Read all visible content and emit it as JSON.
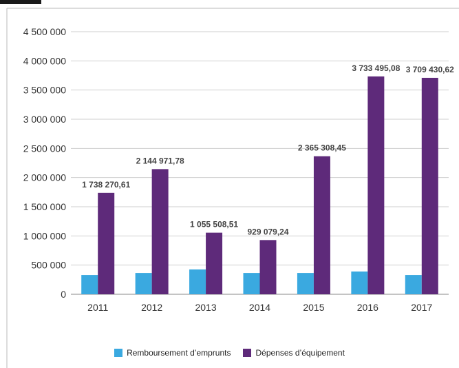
{
  "chart_data": {
    "type": "bar",
    "categories": [
      "2011",
      "2012",
      "2013",
      "2014",
      "2015",
      "2016",
      "2017"
    ],
    "series": [
      {
        "name": "Remboursement d’emprunts",
        "color": "#3aa9e0",
        "values": [
          330000,
          365000,
          425000,
          365000,
          365000,
          390000,
          330000
        ]
      },
      {
        "name": "Dépenses d’équipement",
        "color": "#5e2a7a",
        "values": [
          1738270.61,
          2144971.78,
          1055508.51,
          929079.24,
          2365308.45,
          3733495.08,
          3709430.62
        ],
        "data_labels": [
          "1 738 270,61",
          "2 144 971,78",
          "1 055 508,51",
          "929 079,24",
          "2 365 308,45",
          "3 733 495,08",
          "3 709 430,62"
        ]
      }
    ],
    "yticks": [
      "0",
      "500 000",
      "1 000 000",
      "1 500 000",
      "2 000 000",
      "2 500 000",
      "3 000 000",
      "3 500 000",
      "4 000 000",
      "4 500 000"
    ],
    "ylim": [
      0,
      4500000
    ],
    "grid": true,
    "legend_position": "bottom"
  }
}
